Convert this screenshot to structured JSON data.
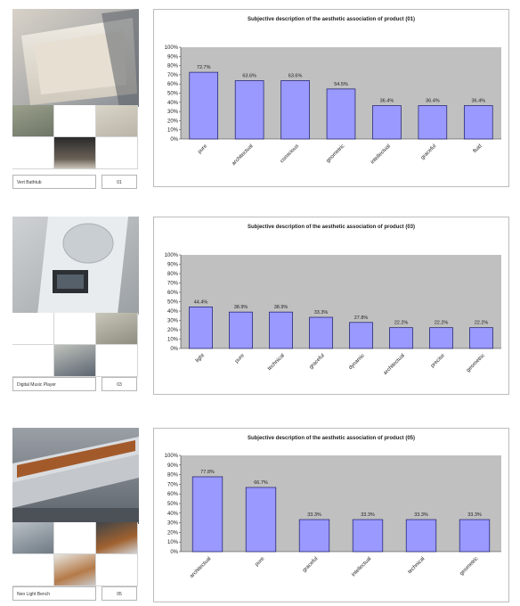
{
  "panels": [
    {
      "product": {
        "name": "Vert Bathtub",
        "code": "01"
      },
      "chart_data": {
        "type": "bar",
        "title": "Subjective description of the aesthetic association of product (01)",
        "categories": [
          "pure",
          "architectual",
          "conscious",
          "geometric",
          "intellectual",
          "graceful",
          "fluid"
        ],
        "values": [
          72.7,
          63.6,
          63.6,
          54.5,
          36.4,
          36.4,
          36.4
        ],
        "data_labels": [
          "72.7%",
          "63.6%",
          "63.6%",
          "54.5%",
          "36.4%",
          "36.4%",
          "36.4%"
        ],
        "y_ticks": [
          "100%",
          "90%",
          "80%",
          "70%",
          "60%",
          "50%",
          "40%",
          "30%",
          "20%",
          "10%",
          "0%"
        ],
        "ylim": [
          0,
          100
        ],
        "bar_color": "#9999ff",
        "plot_bg": "#c0c0c0"
      }
    },
    {
      "product": {
        "name": "Digital Music Player",
        "code": "03"
      },
      "chart_data": {
        "type": "bar",
        "title": "Subjective description of the aesthetic association of product (03)",
        "categories": [
          "light",
          "pure",
          "technical",
          "graceful",
          "dynamic",
          "architectual",
          "precise",
          "geometric"
        ],
        "values": [
          44.4,
          38.9,
          38.9,
          33.3,
          27.8,
          22.2,
          22.2,
          22.2
        ],
        "data_labels": [
          "44.4%",
          "38.9%",
          "38.9%",
          "33.3%",
          "27.8%",
          "22.2%",
          "22.2%",
          "22.2%"
        ],
        "y_ticks": [
          "100%",
          "90%",
          "80%",
          "70%",
          "60%",
          "50%",
          "40%",
          "30%",
          "20%",
          "10%",
          "0%"
        ],
        "ylim": [
          0,
          100
        ],
        "bar_color": "#9999ff",
        "plot_bg": "#c0c0c0"
      }
    },
    {
      "product": {
        "name": "Neo Light Bench",
        "code": "05"
      },
      "chart_data": {
        "type": "bar",
        "title": "Subjective description of the aesthetic association of product (05)",
        "categories": [
          "architectual",
          "pure",
          "graceful",
          "intellectual",
          "technical",
          "geometric"
        ],
        "values": [
          77.8,
          66.7,
          33.3,
          33.3,
          33.3,
          33.3
        ],
        "data_labels": [
          "77.8%",
          "66.7%",
          "33.3%",
          "33.3%",
          "33.3%",
          "33.3%"
        ],
        "y_ticks": [
          "100%",
          "90%",
          "80%",
          "70%",
          "60%",
          "50%",
          "40%",
          "30%",
          "20%",
          "10%",
          "0%"
        ],
        "ylim": [
          0,
          100
        ],
        "bar_color": "#9999ff",
        "plot_bg": "#c0c0c0"
      }
    }
  ]
}
